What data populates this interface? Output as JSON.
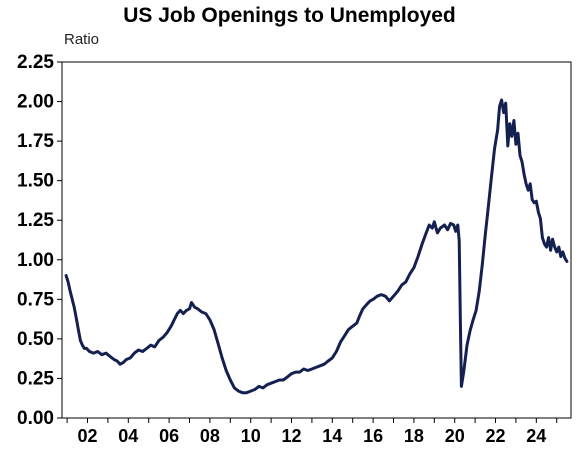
{
  "chart_data": {
    "type": "line",
    "title": "US Job Openings to Unemployed",
    "ylabel": "Ratio",
    "xlabel": "",
    "ylim": [
      0,
      2.25
    ],
    "xlim": [
      2000.75,
      2025.7
    ],
    "yticks": [
      "0.00",
      "0.25",
      "0.50",
      "0.75",
      "1.00",
      "1.25",
      "1.50",
      "1.75",
      "2.00",
      "2.25"
    ],
    "xticks": [
      {
        "year": 2002,
        "label": "02"
      },
      {
        "year": 2004,
        "label": "04"
      },
      {
        "year": 2006,
        "label": "06"
      },
      {
        "year": 2008,
        "label": "08"
      },
      {
        "year": 2010,
        "label": "10"
      },
      {
        "year": 2012,
        "label": "12"
      },
      {
        "year": 2014,
        "label": "14"
      },
      {
        "year": 2016,
        "label": "16"
      },
      {
        "year": 2018,
        "label": "18"
      },
      {
        "year": 2020,
        "label": "20"
      },
      {
        "year": 2022,
        "label": "22"
      },
      {
        "year": 2024,
        "label": "24"
      }
    ],
    "grid": false,
    "line_color": "#14204f",
    "series": [
      {
        "values": [
          [
            2000.95,
            0.9
          ],
          [
            2001.05,
            0.86
          ],
          [
            2001.15,
            0.8
          ],
          [
            2001.25,
            0.75
          ],
          [
            2001.35,
            0.7
          ],
          [
            2001.45,
            0.63
          ],
          [
            2001.55,
            0.56
          ],
          [
            2001.65,
            0.49
          ],
          [
            2001.75,
            0.46
          ],
          [
            2001.85,
            0.44
          ],
          [
            2001.95,
            0.44
          ],
          [
            2002.1,
            0.42
          ],
          [
            2002.3,
            0.41
          ],
          [
            2002.5,
            0.42
          ],
          [
            2002.7,
            0.4
          ],
          [
            2002.9,
            0.41
          ],
          [
            2003.1,
            0.39
          ],
          [
            2003.3,
            0.37
          ],
          [
            2003.45,
            0.36
          ],
          [
            2003.6,
            0.34
          ],
          [
            2003.75,
            0.35
          ],
          [
            2003.9,
            0.37
          ],
          [
            2004.1,
            0.38
          ],
          [
            2004.3,
            0.41
          ],
          [
            2004.5,
            0.43
          ],
          [
            2004.7,
            0.42
          ],
          [
            2004.9,
            0.44
          ],
          [
            2005.1,
            0.46
          ],
          [
            2005.3,
            0.45
          ],
          [
            2005.5,
            0.49
          ],
          [
            2005.7,
            0.51
          ],
          [
            2005.9,
            0.54
          ],
          [
            2006.1,
            0.58
          ],
          [
            2006.25,
            0.62
          ],
          [
            2006.4,
            0.66
          ],
          [
            2006.55,
            0.68
          ],
          [
            2006.7,
            0.66
          ],
          [
            2006.85,
            0.68
          ],
          [
            2007.0,
            0.69
          ],
          [
            2007.1,
            0.73
          ],
          [
            2007.25,
            0.7
          ],
          [
            2007.4,
            0.69
          ],
          [
            2007.6,
            0.67
          ],
          [
            2007.8,
            0.66
          ],
          [
            2008.0,
            0.62
          ],
          [
            2008.2,
            0.56
          ],
          [
            2008.4,
            0.47
          ],
          [
            2008.6,
            0.38
          ],
          [
            2008.8,
            0.3
          ],
          [
            2009.0,
            0.24
          ],
          [
            2009.2,
            0.19
          ],
          [
            2009.4,
            0.17
          ],
          [
            2009.6,
            0.16
          ],
          [
            2009.8,
            0.16
          ],
          [
            2010.0,
            0.17
          ],
          [
            2010.2,
            0.18
          ],
          [
            2010.4,
            0.2
          ],
          [
            2010.6,
            0.19
          ],
          [
            2010.8,
            0.21
          ],
          [
            2011.0,
            0.22
          ],
          [
            2011.2,
            0.23
          ],
          [
            2011.4,
            0.24
          ],
          [
            2011.6,
            0.24
          ],
          [
            2011.8,
            0.26
          ],
          [
            2012.0,
            0.28
          ],
          [
            2012.2,
            0.29
          ],
          [
            2012.4,
            0.29
          ],
          [
            2012.6,
            0.31
          ],
          [
            2012.8,
            0.3
          ],
          [
            2013.0,
            0.31
          ],
          [
            2013.2,
            0.32
          ],
          [
            2013.4,
            0.33
          ],
          [
            2013.6,
            0.34
          ],
          [
            2013.8,
            0.36
          ],
          [
            2014.0,
            0.38
          ],
          [
            2014.2,
            0.42
          ],
          [
            2014.4,
            0.48
          ],
          [
            2014.6,
            0.52
          ],
          [
            2014.8,
            0.56
          ],
          [
            2015.0,
            0.58
          ],
          [
            2015.2,
            0.6
          ],
          [
            2015.35,
            0.65
          ],
          [
            2015.5,
            0.69
          ],
          [
            2015.7,
            0.72
          ],
          [
            2015.85,
            0.74
          ],
          [
            2016.0,
            0.75
          ],
          [
            2016.2,
            0.77
          ],
          [
            2016.4,
            0.78
          ],
          [
            2016.6,
            0.77
          ],
          [
            2016.8,
            0.74
          ],
          [
            2017.0,
            0.77
          ],
          [
            2017.2,
            0.8
          ],
          [
            2017.4,
            0.84
          ],
          [
            2017.6,
            0.86
          ],
          [
            2017.8,
            0.91
          ],
          [
            2018.0,
            0.95
          ],
          [
            2018.2,
            1.02
          ],
          [
            2018.4,
            1.1
          ],
          [
            2018.6,
            1.17
          ],
          [
            2018.75,
            1.22
          ],
          [
            2018.9,
            1.2
          ],
          [
            2019.0,
            1.24
          ],
          [
            2019.15,
            1.17
          ],
          [
            2019.3,
            1.2
          ],
          [
            2019.5,
            1.22
          ],
          [
            2019.65,
            1.19
          ],
          [
            2019.8,
            1.23
          ],
          [
            2019.95,
            1.22
          ],
          [
            2020.05,
            1.18
          ],
          [
            2020.15,
            1.22
          ],
          [
            2020.22,
            1.12
          ],
          [
            2020.28,
            0.6
          ],
          [
            2020.33,
            0.2
          ],
          [
            2020.45,
            0.3
          ],
          [
            2020.6,
            0.46
          ],
          [
            2020.75,
            0.55
          ],
          [
            2020.9,
            0.62
          ],
          [
            2021.05,
            0.68
          ],
          [
            2021.2,
            0.8
          ],
          [
            2021.35,
            0.97
          ],
          [
            2021.5,
            1.16
          ],
          [
            2021.65,
            1.34
          ],
          [
            2021.8,
            1.52
          ],
          [
            2021.95,
            1.7
          ],
          [
            2022.1,
            1.82
          ],
          [
            2022.2,
            1.97
          ],
          [
            2022.3,
            2.01
          ],
          [
            2022.4,
            1.93
          ],
          [
            2022.5,
            1.99
          ],
          [
            2022.6,
            1.72
          ],
          [
            2022.7,
            1.86
          ],
          [
            2022.8,
            1.78
          ],
          [
            2022.9,
            1.88
          ],
          [
            2023.0,
            1.73
          ],
          [
            2023.1,
            1.8
          ],
          [
            2023.2,
            1.66
          ],
          [
            2023.3,
            1.62
          ],
          [
            2023.4,
            1.54
          ],
          [
            2023.5,
            1.48
          ],
          [
            2023.6,
            1.44
          ],
          [
            2023.7,
            1.48
          ],
          [
            2023.8,
            1.38
          ],
          [
            2023.9,
            1.36
          ],
          [
            2024.0,
            1.37
          ],
          [
            2024.1,
            1.3
          ],
          [
            2024.2,
            1.26
          ],
          [
            2024.3,
            1.14
          ],
          [
            2024.4,
            1.1
          ],
          [
            2024.5,
            1.08
          ],
          [
            2024.6,
            1.14
          ],
          [
            2024.7,
            1.06
          ],
          [
            2024.8,
            1.13
          ],
          [
            2024.9,
            1.08
          ],
          [
            2025.0,
            1.05
          ],
          [
            2025.1,
            1.08
          ],
          [
            2025.2,
            1.02
          ],
          [
            2025.3,
            1.05
          ],
          [
            2025.4,
            1.01
          ],
          [
            2025.5,
            0.99
          ]
        ]
      }
    ]
  }
}
